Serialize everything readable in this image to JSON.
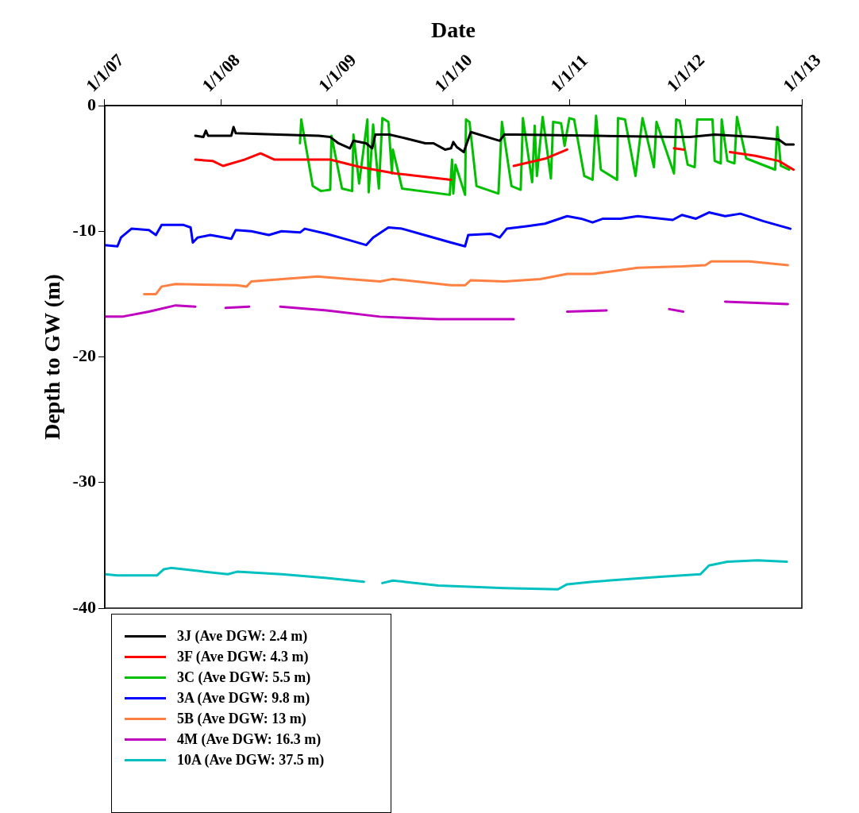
{
  "chart_data": {
    "type": "line",
    "xlabel": "Date",
    "ylabel": "Depth to GW (m)",
    "xlim": [
      "2007-01-01",
      "2013-01-01"
    ],
    "xticks": [
      {
        "value": "2007-01-01",
        "label": "1/1/07"
      },
      {
        "value": "2008-01-01",
        "label": "1/1/08"
      },
      {
        "value": "2009-01-01",
        "label": "1/1/09"
      },
      {
        "value": "2010-01-01",
        "label": "1/1/10"
      },
      {
        "value": "2011-01-01",
        "label": "1/1/11"
      },
      {
        "value": "2012-01-01",
        "label": "1/1/12"
      },
      {
        "value": "2013-01-01",
        "label": "1/1/13"
      }
    ],
    "ylim": [
      -40,
      0
    ],
    "yticks": [
      0,
      -10,
      -20,
      -30,
      -40
    ],
    "grid": false,
    "legend": "bottom left",
    "line_style": "solid",
    "series": [
      {
        "name": "3J (Ave DGW: 2.4 m)",
        "color": "#000000",
        "x": [
          "2007-10-13",
          "2007-11-07",
          "2007-11-15",
          "2007-11-22",
          "2008-02-03",
          "2008-02-10",
          "2008-02-17",
          "2008-06-29",
          "2008-11-04",
          "2008-12-10",
          "2009-01-05",
          "2009-02-10",
          "2009-02-21",
          "2009-04-02",
          "2009-04-21",
          "2009-05-01",
          "2009-06-14",
          "2009-08-04",
          "2009-10-05",
          "2009-10-31",
          "2009-12-06",
          "2009-12-25",
          "2010-01-01",
          "2010-01-12",
          "2010-02-03",
          "2010-02-25",
          "2010-05-27",
          "2010-06-11",
          "2010-07-17",
          "2011-03-26",
          "2011-11-29",
          "2012-01-16",
          "2012-04-02",
          "2012-08-04",
          "2012-10-20",
          "2012-11-11",
          "2012-12-06"
        ],
        "values": [
          -2.4,
          -2.5,
          -2,
          -2.4,
          -2.4,
          -1.7,
          -2.2,
          -2.3,
          -2.4,
          -2.5,
          -3,
          -3.4,
          -2.8,
          -3,
          -3.4,
          -2.3,
          -2.3,
          -2.6,
          -3,
          -3,
          -3.5,
          -3.4,
          -2.9,
          -3.3,
          -3.7,
          -2.1,
          -2.8,
          -2.3,
          -2.3,
          -2.4,
          -2.5,
          -2.5,
          -2.3,
          -2.5,
          -2.7,
          -3.1,
          -3.1
        ]
      },
      {
        "name": "3F (Ave DGW: 4.3 m)",
        "color": "#ff0000",
        "x": [
          "2007-10-13",
          "2007-12-06",
          "2008-01-08",
          "2008-03-15",
          "2008-05-05",
          "2008-06-18",
          "2008-09-14",
          "2008-12-10",
          "2009-03-15",
          "2009-07-03",
          "2009-12-25",
          "2010-03-15",
          "2010-07-10",
          "2010-10-20",
          "2010-12-25",
          "2011-05-27",
          "2011-11-26",
          "2011-12-28",
          "2012-03-15",
          "2012-05-20",
          "2012-08-08",
          "2012-10-20",
          "2012-12-06"
        ],
        "values": [
          -4.3,
          -4.4,
          -4.8,
          -4.3,
          -3.8,
          -4.3,
          -4.3,
          -4.3,
          -4.9,
          -5.4,
          -5.9,
          null,
          -4.8,
          -4.2,
          -3.5,
          null,
          -3.4,
          -3.5,
          null,
          -3.7,
          -4,
          -4.4,
          -5.1
        ]
      },
      {
        "name": "3C (Ave DGW: 5.5 m)",
        "color": "#00c000",
        "x": [
          "2008-09-06",
          "2008-09-10",
          "2008-10-16",
          "2008-11-11",
          "2008-12-10",
          "2008-12-14",
          "2009-01-16",
          "2009-02-17",
          "2009-02-21",
          "2009-03-11",
          "2009-04-06",
          "2009-04-10",
          "2009-04-24",
          "2009-05-12",
          "2009-05-23",
          "2009-06-11",
          "2009-06-22",
          "2009-06-25",
          "2009-07-24",
          "2009-12-21",
          "2009-12-28",
          "2010-01-01",
          "2010-01-08",
          "2010-02-07",
          "2010-02-10",
          "2010-02-21",
          "2010-03-15",
          "2010-05-23",
          "2010-06-03",
          "2010-07-03",
          "2010-08-01",
          "2010-08-08",
          "2010-09-06",
          "2010-09-14",
          "2010-09-21",
          "2010-10-09",
          "2010-11-04",
          "2010-11-11",
          "2010-12-06",
          "2010-12-17",
          "2011-01-01",
          "2011-01-16",
          "2011-02-17",
          "2011-03-15",
          "2011-03-26",
          "2011-04-10",
          "2011-05-31",
          "2011-06-03",
          "2011-06-25",
          "2011-07-28",
          "2011-08-19",
          "2011-09-24",
          "2011-10-02",
          "2011-11-26",
          "2011-12-03",
          "2011-12-14",
          "2012-01-08",
          "2012-01-30",
          "2012-02-07",
          "2012-03-26",
          "2012-04-02",
          "2012-04-21",
          "2012-04-24",
          "2012-05-12",
          "2012-06-03",
          "2012-06-11",
          "2012-07-10",
          "2012-10-09",
          "2012-10-16",
          "2012-10-27",
          "2012-11-22"
        ],
        "values": [
          -3,
          -1.1,
          -6.4,
          -6.8,
          -6.7,
          -2.4,
          -6.6,
          -6.8,
          -2.3,
          -6.2,
          -1.1,
          -6.9,
          -1.5,
          -6.6,
          -1,
          -1.3,
          -5.4,
          -3.5,
          -6.6,
          -7.1,
          -4.3,
          -7,
          -4.7,
          -7.1,
          -1.1,
          -1.3,
          -6.4,
          -7,
          -1.3,
          -6.4,
          -6.7,
          -1,
          -6.1,
          -1.6,
          -5.6,
          -0.9,
          -5.8,
          -1.3,
          -1.4,
          -3.2,
          -1,
          -1.1,
          -5.6,
          -5.9,
          -0.8,
          -5.1,
          -5.9,
          -1,
          -1.1,
          -5.6,
          -1,
          -4.9,
          -1.3,
          -5.4,
          -1.1,
          -1.2,
          -4.7,
          -4.9,
          -1.1,
          -1.1,
          -4.4,
          -4.6,
          -1.1,
          -4.4,
          -4.6,
          -0.9,
          -4.2,
          -5.1,
          -1.7,
          -4.8,
          -5.1
        ]
      },
      {
        "name": "3A (Ave DGW: 9.8 m)",
        "color": "#0000ff",
        "x": [
          "2007-01-01",
          "2007-02-10",
          "2007-02-21",
          "2007-03-26",
          "2007-05-20",
          "2007-06-11",
          "2007-06-29",
          "2007-09-06",
          "2007-09-28",
          "2007-10-05",
          "2007-10-20",
          "2007-11-29",
          "2008-02-03",
          "2008-02-17",
          "2008-04-06",
          "2008-05-31",
          "2008-07-10",
          "2008-09-06",
          "2008-09-21",
          "2008-11-29",
          "2009-02-07",
          "2009-04-02",
          "2009-04-24",
          "2009-06-11",
          "2009-07-24",
          "2009-10-02",
          "2009-12-25",
          "2010-02-07",
          "2010-02-17",
          "2010-04-28",
          "2010-05-27",
          "2010-06-18",
          "2010-08-19",
          "2010-10-16",
          "2010-12-25",
          "2011-02-07",
          "2011-03-15",
          "2011-04-17",
          "2011-06-11",
          "2011-08-04",
          "2011-11-22",
          "2011-12-21",
          "2012-02-03",
          "2012-03-15",
          "2012-05-05",
          "2012-06-22",
          "2012-09-03",
          "2012-11-26"
        ],
        "values": [
          -11.1,
          -11.2,
          -10.5,
          -9.8,
          -9.9,
          -10.3,
          -9.5,
          -9.5,
          -9.7,
          -10.9,
          -10.5,
          -10.3,
          -10.6,
          -9.9,
          -10,
          -10.3,
          -10,
          -10.1,
          -9.8,
          -10.2,
          -10.7,
          -11.1,
          -10.5,
          -9.7,
          -9.8,
          -10.3,
          -10.9,
          -11.2,
          -10.3,
          -10.2,
          -10.5,
          -9.8,
          -9.6,
          -9.4,
          -8.8,
          -9,
          -9.3,
          -9,
          -9,
          -8.8,
          -9.1,
          -8.7,
          -9,
          -8.5,
          -8.8,
          -8.6,
          -9.2,
          -9.8
        ]
      },
      {
        "name": "5B (Ave DGW: 13 m)",
        "color": "#ff8040",
        "x": [
          "2007-05-05",
          "2007-06-11",
          "2007-06-29",
          "2007-08-12",
          "2008-02-21",
          "2008-03-22",
          "2008-04-06",
          "2008-07-13",
          "2008-10-31",
          "2009-02-07",
          "2009-05-16",
          "2009-06-25",
          "2009-12-25",
          "2010-02-07",
          "2010-02-25",
          "2010-06-11",
          "2010-10-02",
          "2010-12-25",
          "2011-03-15",
          "2011-08-04",
          "2011-12-21",
          "2012-03-04",
          "2012-03-22",
          "2012-07-21",
          "2012-11-18"
        ],
        "values": [
          -15,
          -15,
          -14.4,
          -14.2,
          -14.3,
          -14.4,
          -14,
          -13.8,
          -13.6,
          -13.8,
          -14,
          -13.8,
          -14.3,
          -14.3,
          -13.9,
          -14,
          -13.8,
          -13.4,
          -13.4,
          -12.9,
          -12.8,
          -12.7,
          -12.4,
          -12.4,
          -12.7
        ]
      },
      {
        "name": "4M (Ave DGW: 16.3 m)",
        "color": "#c000c0",
        "x": [
          "2007-01-01",
          "2007-02-25",
          "2007-05-20",
          "2007-08-12",
          "2007-10-13",
          "2007-11-26",
          "2008-01-16",
          "2008-03-30",
          "2008-05-20",
          "2008-07-06",
          "2008-11-29",
          "2009-05-16",
          "2009-11-15",
          "2010-07-10",
          "2010-10-02",
          "2010-12-25",
          "2011-04-28",
          "2011-08-08",
          "2011-11-11",
          "2011-12-25",
          "2012-02-25",
          "2012-05-05",
          "2012-11-18"
        ],
        "values": [
          -16.8,
          -16.8,
          -16.4,
          -15.9,
          -16,
          null,
          -16.1,
          -16,
          null,
          -16,
          -16.3,
          -16.8,
          -17,
          -17,
          null,
          -16.4,
          -16.3,
          null,
          -16.2,
          -16.4,
          null,
          -15.6,
          -15.8
        ]
      },
      {
        "name": "10A (Ave DGW: 37.5 m)",
        "color": "#00c0c0",
        "x": [
          "2007-01-01",
          "2007-02-10",
          "2007-06-14",
          "2007-07-06",
          "2007-07-28",
          "2008-01-23",
          "2008-02-21",
          "2008-07-10",
          "2008-11-29",
          "2009-03-26",
          "2009-04-24",
          "2009-05-23",
          "2009-06-25",
          "2009-11-15",
          "2010-06-11",
          "2010-11-26",
          "2010-12-25",
          "2011-03-15",
          "2011-10-13",
          "2012-02-17",
          "2012-03-15",
          "2012-05-12",
          "2012-08-15",
          "2012-11-15"
        ],
        "values": [
          -37.3,
          -37.4,
          -37.4,
          -36.9,
          -36.8,
          -37.3,
          -37.1,
          -37.3,
          -37.6,
          -37.9,
          null,
          -38,
          -37.8,
          -38.2,
          -38.4,
          -38.5,
          -38.1,
          -37.9,
          -37.5,
          -37.3,
          -36.6,
          -36.3,
          -36.2,
          -36.3
        ]
      }
    ]
  }
}
